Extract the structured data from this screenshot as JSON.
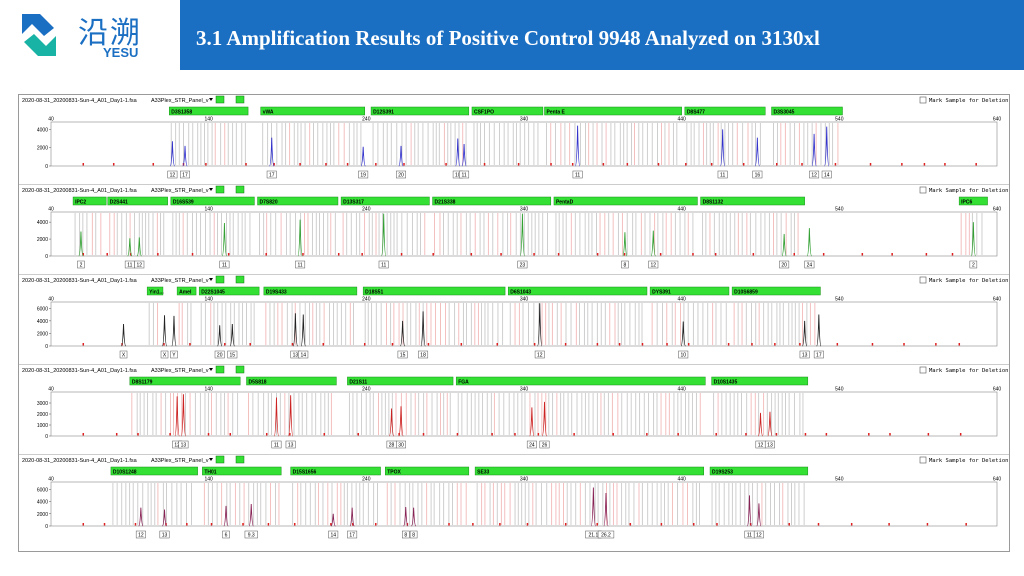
{
  "header": {
    "logo_cn": "沿溯",
    "logo_en": "YESU",
    "title": "3.1 Amplification Results of Positive Control 9948 Analyzed on 3130xl"
  },
  "colors": {
    "header_bg": "#1b6fc3",
    "bin_green": "#33e033"
  },
  "panels": [
    {
      "file": "2020-08-31_20200831-Sun-4_A01_Day1-1.fsa",
      "panel": "A33Plex_STR_Panel_v",
      "mark": "Mark Sample for Deletion",
      "color": "#3333cc",
      "yticks": [
        "4000",
        "2000",
        "0"
      ],
      "ymax": 4800,
      "xticks": [
        "40",
        "140",
        "240",
        "340",
        "440",
        "540",
        "640"
      ],
      "loci": [
        {
          "name": "D3S1358",
          "start": 115,
          "end": 165
        },
        {
          "name": "vWA",
          "start": 173,
          "end": 239
        },
        {
          "name": "D12S391",
          "start": 243,
          "end": 305
        },
        {
          "name": "CSF1PO",
          "start": 307,
          "end": 352
        },
        {
          "name": "Penta E",
          "start": 353,
          "end": 440
        },
        {
          "name": "D8S477",
          "start": 442,
          "end": 493
        },
        {
          "name": "D3S3045",
          "start": 497,
          "end": 542
        }
      ],
      "peaks": [
        {
          "x": 117,
          "h": 2700,
          "label": "12"
        },
        {
          "x": 125,
          "h": 2200,
          "label": "17"
        },
        {
          "x": 180,
          "h": 3100,
          "label": "17"
        },
        {
          "x": 238,
          "h": 2100,
          "label": "19"
        },
        {
          "x": 262,
          "h": 2200,
          "label": "20"
        },
        {
          "x": 298,
          "h": 3000,
          "label": "10"
        },
        {
          "x": 302,
          "h": 2400,
          "label": "11"
        },
        {
          "x": 374,
          "h": 4400,
          "label": "11"
        },
        {
          "x": 466,
          "h": 4000,
          "label": "11"
        },
        {
          "x": 488,
          "h": 3100,
          "label": "16"
        },
        {
          "x": 524,
          "h": 3500,
          "label": "12"
        },
        {
          "x": 532,
          "h": 4300,
          "label": "14"
        }
      ]
    },
    {
      "file": "2020-08-31_20200831-Sun-4_A01_Day1-1.fsa",
      "panel": "A33Plex_STR_Panel_v",
      "mark": "Mark Sample for Deletion",
      "color": "#33a033",
      "yticks": [
        "4000",
        "2000",
        "0"
      ],
      "ymax": 5200,
      "xticks": [
        "40",
        "140",
        "240",
        "340",
        "440",
        "540",
        "640"
      ],
      "loci": [
        {
          "name": "IPC2",
          "start": 54,
          "end": 75
        },
        {
          "name": "D2S441",
          "start": 76,
          "end": 114
        },
        {
          "name": "D16S539",
          "start": 116,
          "end": 169
        },
        {
          "name": "D7S820",
          "start": 171,
          "end": 222
        },
        {
          "name": "D13S317",
          "start": 224,
          "end": 280
        },
        {
          "name": "D21S338",
          "start": 282,
          "end": 357
        },
        {
          "name": "PentaD",
          "start": 359,
          "end": 450
        },
        {
          "name": "D8S1132",
          "start": 452,
          "end": 518
        },
        {
          "name": "IPC6",
          "start": 616,
          "end": 634
        }
      ],
      "peaks": [
        {
          "x": 59,
          "h": 2900,
          "label": "2"
        },
        {
          "x": 90,
          "h": 2100,
          "label": "11"
        },
        {
          "x": 96,
          "h": 2200,
          "label": "12"
        },
        {
          "x": 150,
          "h": 3900,
          "label": "11"
        },
        {
          "x": 198,
          "h": 4300,
          "label": "11"
        },
        {
          "x": 251,
          "h": 5000,
          "label": "11"
        },
        {
          "x": 339,
          "h": 5000,
          "label": "23"
        },
        {
          "x": 404,
          "h": 2800,
          "label": "8"
        },
        {
          "x": 422,
          "h": 3000,
          "label": "12"
        },
        {
          "x": 505,
          "h": 2600,
          "label": "20"
        },
        {
          "x": 521,
          "h": 3300,
          "label": "24"
        },
        {
          "x": 625,
          "h": 4000,
          "label": "2"
        }
      ]
    },
    {
      "file": "2020-08-31_20200831-Sun-4_A01_Day1-1.fsa",
      "panel": "A33Plex_STR_Panel_v",
      "mark": "Mark Sample for Deletion",
      "color": "#222222",
      "yticks": [
        "6000",
        "4000",
        "2000",
        "0"
      ],
      "ymax": 7000,
      "xticks": [
        "40",
        "140",
        "240",
        "340",
        "440",
        "540",
        "640"
      ],
      "loci": [
        {
          "name": "Yin1...",
          "start": 101,
          "end": 111
        },
        {
          "name": "Amel",
          "start": 120,
          "end": 132
        },
        {
          "name": "D22S1045",
          "start": 134,
          "end": 172
        },
        {
          "name": "D19S433",
          "start": 175,
          "end": 234
        },
        {
          "name": "D18S51",
          "start": 238,
          "end": 328
        },
        {
          "name": "D6S1043",
          "start": 330,
          "end": 418
        },
        {
          "name": "DYS391",
          "start": 420,
          "end": 470
        },
        {
          "name": "D10S6859",
          "start": 472,
          "end": 528
        }
      ],
      "peaks": [
        {
          "x": 86,
          "h": 3500,
          "label": "X"
        },
        {
          "x": 112,
          "h": 4900,
          "label": "X"
        },
        {
          "x": 118,
          "h": 4800,
          "label": "Y"
        },
        {
          "x": 147,
          "h": 3300,
          "label": "20"
        },
        {
          "x": 155,
          "h": 3500,
          "label": "15"
        },
        {
          "x": 195,
          "h": 5200,
          "label": "13"
        },
        {
          "x": 200,
          "h": 5000,
          "label": "14"
        },
        {
          "x": 263,
          "h": 4000,
          "label": "15"
        },
        {
          "x": 276,
          "h": 5500,
          "label": "18"
        },
        {
          "x": 350,
          "h": 6800,
          "label": "12"
        },
        {
          "x": 441,
          "h": 3900,
          "label": "10"
        },
        {
          "x": 518,
          "h": 4000,
          "label": "13"
        },
        {
          "x": 527,
          "h": 5000,
          "label": "17"
        }
      ]
    },
    {
      "file": "2020-08-31_20200831-Sun-4_A01_Day1-1.fsa",
      "panel": "A33Plex_STR_Panel_v",
      "mark": "Mark Sample for Deletion",
      "color": "#cc2222",
      "yticks": [
        "3000",
        "2000",
        "1000",
        "0"
      ],
      "ymax": 4000,
      "xticks": [
        "40",
        "140",
        "240",
        "340",
        "440",
        "540",
        "640"
      ],
      "loci": [
        {
          "name": "D8S1179",
          "start": 90,
          "end": 160
        },
        {
          "name": "D5S818",
          "start": 164,
          "end": 221
        },
        {
          "name": "D21S11",
          "start": 228,
          "end": 295
        },
        {
          "name": "FGA",
          "start": 297,
          "end": 455
        },
        {
          "name": "D10S1435",
          "start": 459,
          "end": 520
        }
      ],
      "peaks": [
        {
          "x": 120,
          "h": 3600,
          "label": "12"
        },
        {
          "x": 124,
          "h": 3800,
          "label": "13"
        },
        {
          "x": 183,
          "h": 3500,
          "label": "11"
        },
        {
          "x": 192,
          "h": 3700,
          "label": "13"
        },
        {
          "x": 256,
          "h": 2500,
          "label": "28"
        },
        {
          "x": 262,
          "h": 2700,
          "label": "30"
        },
        {
          "x": 345,
          "h": 2600,
          "label": "24"
        },
        {
          "x": 353,
          "h": 3100,
          "label": "26"
        },
        {
          "x": 490,
          "h": 2100,
          "label": "12"
        },
        {
          "x": 496,
          "h": 2200,
          "label": "13"
        }
      ]
    },
    {
      "file": "2020-08-31_20200831-Sun-4_A01_Day1-1.fsa",
      "panel": "A33Plex_STR_Panel_v",
      "mark": "Mark Sample for Deletion",
      "color": "#882255",
      "yticks": [
        "6000",
        "4000",
        "2000",
        "0"
      ],
      "ymax": 7200,
      "xticks": [
        "40",
        "140",
        "240",
        "340",
        "440",
        "540",
        "640"
      ],
      "loci": [
        {
          "name": "D10S1248",
          "start": 78,
          "end": 133
        },
        {
          "name": "TH01",
          "start": 136,
          "end": 186
        },
        {
          "name": "D15S1656",
          "start": 192,
          "end": 249
        },
        {
          "name": "TPOX",
          "start": 252,
          "end": 305
        },
        {
          "name": "SE33",
          "start": 309,
          "end": 454
        },
        {
          "name": "D19S253",
          "start": 458,
          "end": 520
        }
      ],
      "peaks": [
        {
          "x": 97,
          "h": 3000,
          "label": "12"
        },
        {
          "x": 112,
          "h": 2700,
          "label": "13"
        },
        {
          "x": 151,
          "h": 3300,
          "label": "6"
        },
        {
          "x": 167,
          "h": 3600,
          "label": "9.3"
        },
        {
          "x": 219,
          "h": 2000,
          "label": "14"
        },
        {
          "x": 231,
          "h": 3000,
          "label": "17"
        },
        {
          "x": 265,
          "h": 3100,
          "label": "8"
        },
        {
          "x": 270,
          "h": 3000,
          "label": "8"
        },
        {
          "x": 384,
          "h": 6300,
          "label": "21.1"
        },
        {
          "x": 392,
          "h": 5400,
          "label": "26.2"
        },
        {
          "x": 483,
          "h": 5000,
          "label": "11"
        },
        {
          "x": 489,
          "h": 3700,
          "label": "12"
        }
      ]
    }
  ]
}
